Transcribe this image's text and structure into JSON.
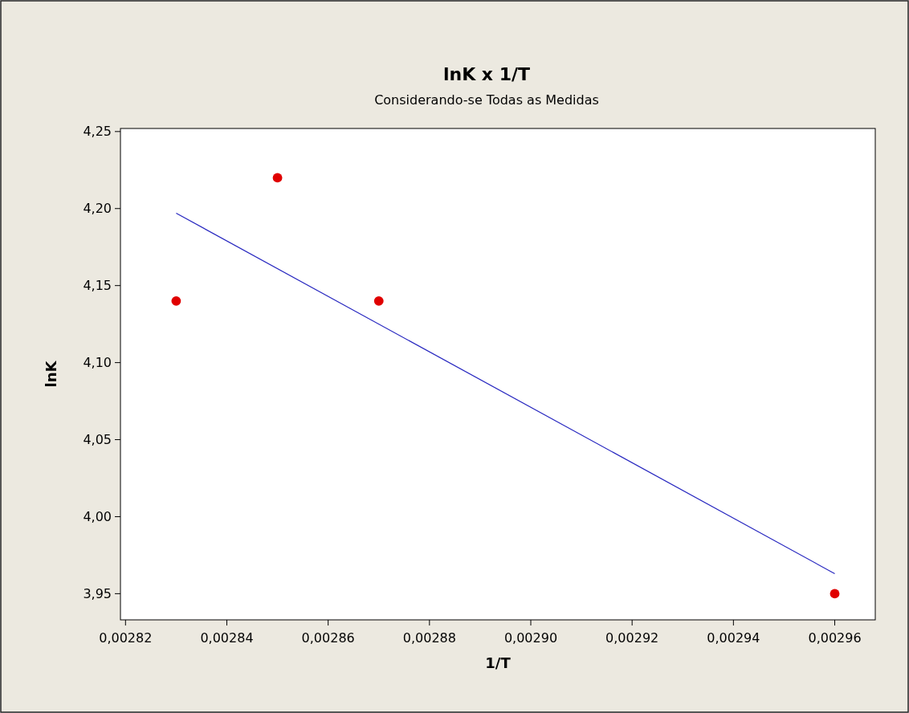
{
  "chart_data": {
    "type": "scatter",
    "title": "lnK x 1/T",
    "subtitle": "Considerando-se Todas as Medidas",
    "xlabel": "1/T",
    "ylabel": "lnK",
    "series": [
      {
        "color": "#e00000",
        "x": [
          0.00283,
          0.00285,
          0.00287,
          0.00296
        ],
        "values": [
          4.14,
          4.22,
          4.14,
          3.95
        ],
        "marker": "circle"
      },
      {
        "type": "line",
        "color": "#2828c0",
        "x": [
          0.00283,
          0.00296
        ],
        "values": [
          4.197,
          3.963
        ],
        "marker": "none",
        "line_style": "solid"
      }
    ],
    "xlim": [
      0.002819,
      0.002968
    ],
    "ylim": [
      3.933,
      4.252
    ],
    "xticks": [
      {
        "value": 0.00282,
        "label": "0,00282"
      },
      {
        "value": 0.00284,
        "label": "0,00284"
      },
      {
        "value": 0.00286,
        "label": "0,00286"
      },
      {
        "value": 0.00288,
        "label": "0,00288"
      },
      {
        "value": 0.0029,
        "label": "0,00290"
      },
      {
        "value": 0.00292,
        "label": "0,00292"
      },
      {
        "value": 0.00294,
        "label": "0,00294"
      },
      {
        "value": 0.00296,
        "label": "0,00296"
      }
    ],
    "yticks": [
      {
        "value": 3.95,
        "label": "3,95"
      },
      {
        "value": 4,
        "label": "4,00"
      },
      {
        "value": 4.05,
        "label": "4,05"
      },
      {
        "value": 4.1,
        "label": "4,10"
      },
      {
        "value": 4.15,
        "label": "4,15"
      },
      {
        "value": 4.2,
        "label": "4,20"
      },
      {
        "value": 4.25,
        "label": "4,25"
      }
    ],
    "grid": false
  }
}
